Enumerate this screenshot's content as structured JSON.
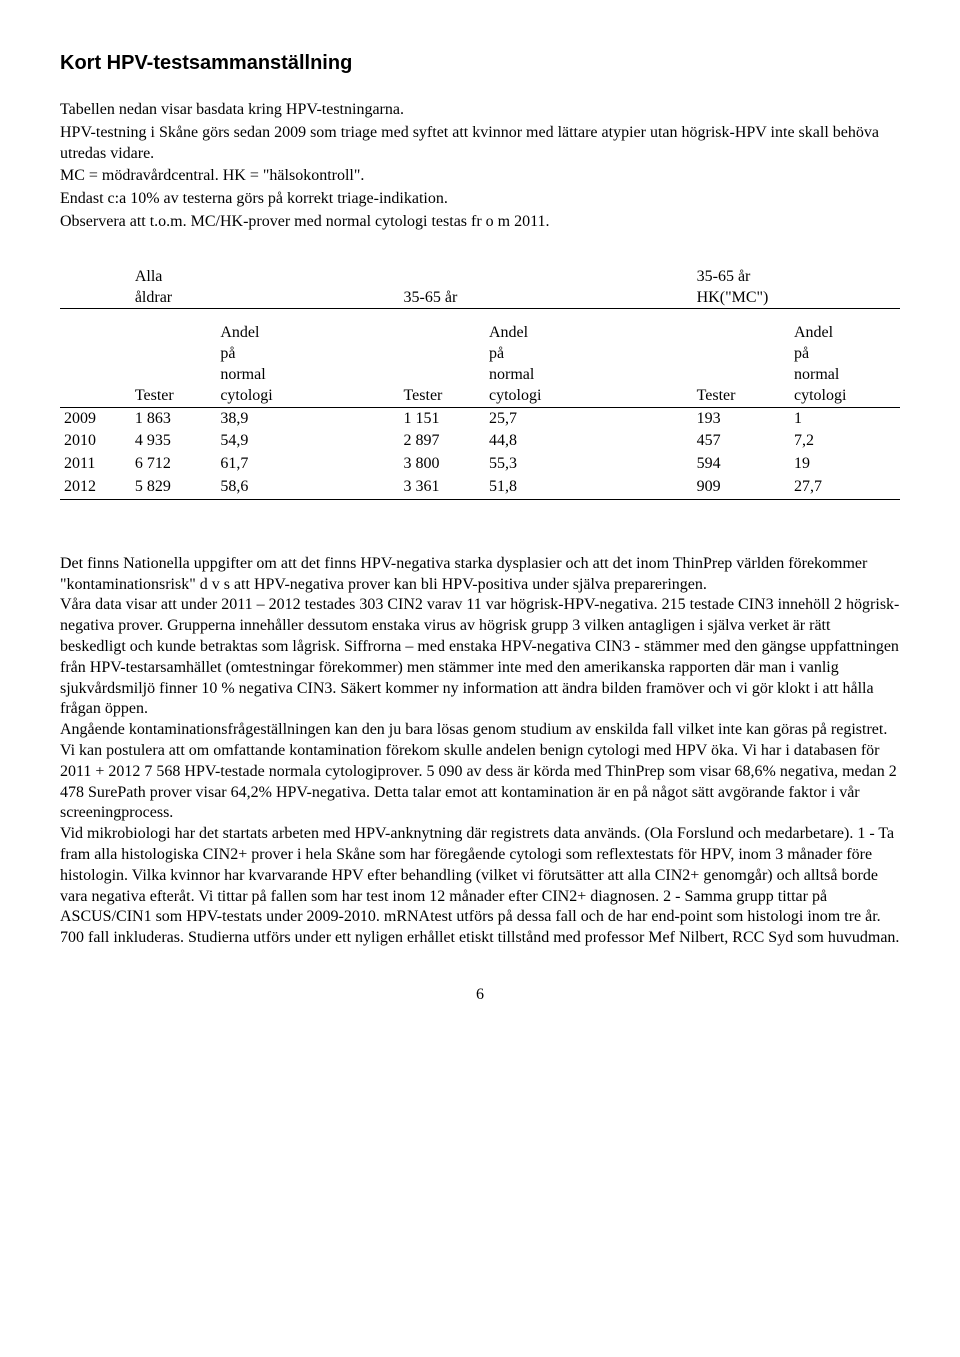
{
  "title": "Kort HPV-testsammanställning",
  "intro": {
    "p1": "Tabellen nedan visar basdata kring HPV-testningarna.",
    "p2": "HPV-testning i Skåne görs sedan 2009 som triage med syftet att kvinnor med lättare atypier utan högrisk-HPV inte skall behöva utredas vidare.",
    "p3": "MC = mödravårdcentral.  HK = \"hälsokontroll\".",
    "p4": "Endast c:a 10% av testerna görs på korrekt triage-indikation.",
    "p5": "Observera att t.o.m. MC/HK-prover med normal cytologi testas fr o m 2011."
  },
  "table": {
    "group_headers": {
      "g1a": "Alla",
      "g1b": "åldrar",
      "g2": "35-65 år",
      "g3a": "35-65 år",
      "g3b": "HK(\"MC\")"
    },
    "col_headers": {
      "tester": "Tester",
      "andel_l1": "Andel",
      "andel_l2": "på",
      "andel_l3": "normal",
      "andel_l4": "cytologi"
    },
    "rows": [
      {
        "year": "2009",
        "t1": "1 863",
        "a1": "38,9",
        "t2": "1 151",
        "a2": "25,7",
        "t3": "193",
        "a3": "1"
      },
      {
        "year": "2010",
        "t1": "4 935",
        "a1": "54,9",
        "t2": "2 897",
        "a2": "44,8",
        "t3": "457",
        "a3": "7,2"
      },
      {
        "year": "2011",
        "t1": "6 712",
        "a1": "61,7",
        "t2": "3 800",
        "a2": "55,3",
        "t3": "594",
        "a3": "19"
      },
      {
        "year": "2012",
        "t1": "5 829",
        "a1": "58,6",
        "t2": "3 361",
        "a2": "51,8",
        "t3": "909",
        "a3": "27,7"
      }
    ]
  },
  "body": {
    "text": "Det finns Nationella uppgifter om att det finns HPV-negativa starka dysplasier och att det inom ThinPrep världen förekommer \"kontaminationsrisk\" d v s att HPV-negativa prover kan bli HPV-positiva under själva prepareringen.\nVåra data visar att under 2011 – 2012 testades 303 CIN2 varav 11 var högrisk-HPV-negativa. 215 testade CIN3 innehöll 2 högrisk-negativa prover. Grupperna innehåller dessutom enstaka virus av högrisk grupp 3 vilken antagligen i själva verket är rätt beskedligt och kunde betraktas som lågrisk.  Siffrorna – med enstaka HPV-negativa CIN3 - stämmer med den gängse uppfattningen från HPV-testarsamhället (omtestningar förekommer) men stämmer inte med den amerikanska rapporten där man i vanlig sjukvårdsmiljö finner 10 % negativa CIN3.  Säkert kommer ny information att ändra bilden framöver och vi gör klokt i att hålla frågan öppen.\nAngående kontaminationsfrågeställningen kan den ju bara lösas genom studium av enskilda fall vilket inte kan göras på registret. Vi kan postulera att om omfattande kontamination förekom skulle andelen benign cytologi med HPV öka.  Vi har i databasen för 2011 + 2012 7 568 HPV-testade normala cytologiprover.  5 090 av dess är körda med ThinPrep som visar 68,6% negativa, medan 2 478 SurePath prover visar 64,2% HPV-negativa.  Detta talar emot att kontamination är en på något sätt avgörande faktor i vår screeningprocess.\nVid mikrobiologi har det startats arbeten med HPV-anknytning där registrets data används. (Ola Forslund och medarbetare). 1 - Ta fram alla histologiska CIN2+ prover i hela Skåne som har föregående cytologi som reflextestats för HPV, inom 3 månader före histologin. Vilka kvinnor har kvarvarande HPV efter behandling (vilket vi förutsätter att alla CIN2+ genomgår) och alltså borde vara negativa efteråt.  Vi tittar på fallen som har test inom 12 månader efter CIN2+ diagnosen.  2 - Samma grupp tittar på ASCUS/CIN1 som HPV-testats under 2009-2010. mRNAtest utförs på dessa fall och de har end-point som histologi inom tre år. 700 fall inkluderas. Studierna utförs under ett nyligen erhållet etiskt tillstånd med professor Mef Nilbert, RCC Syd som huvudman."
  },
  "page_number": "6"
}
